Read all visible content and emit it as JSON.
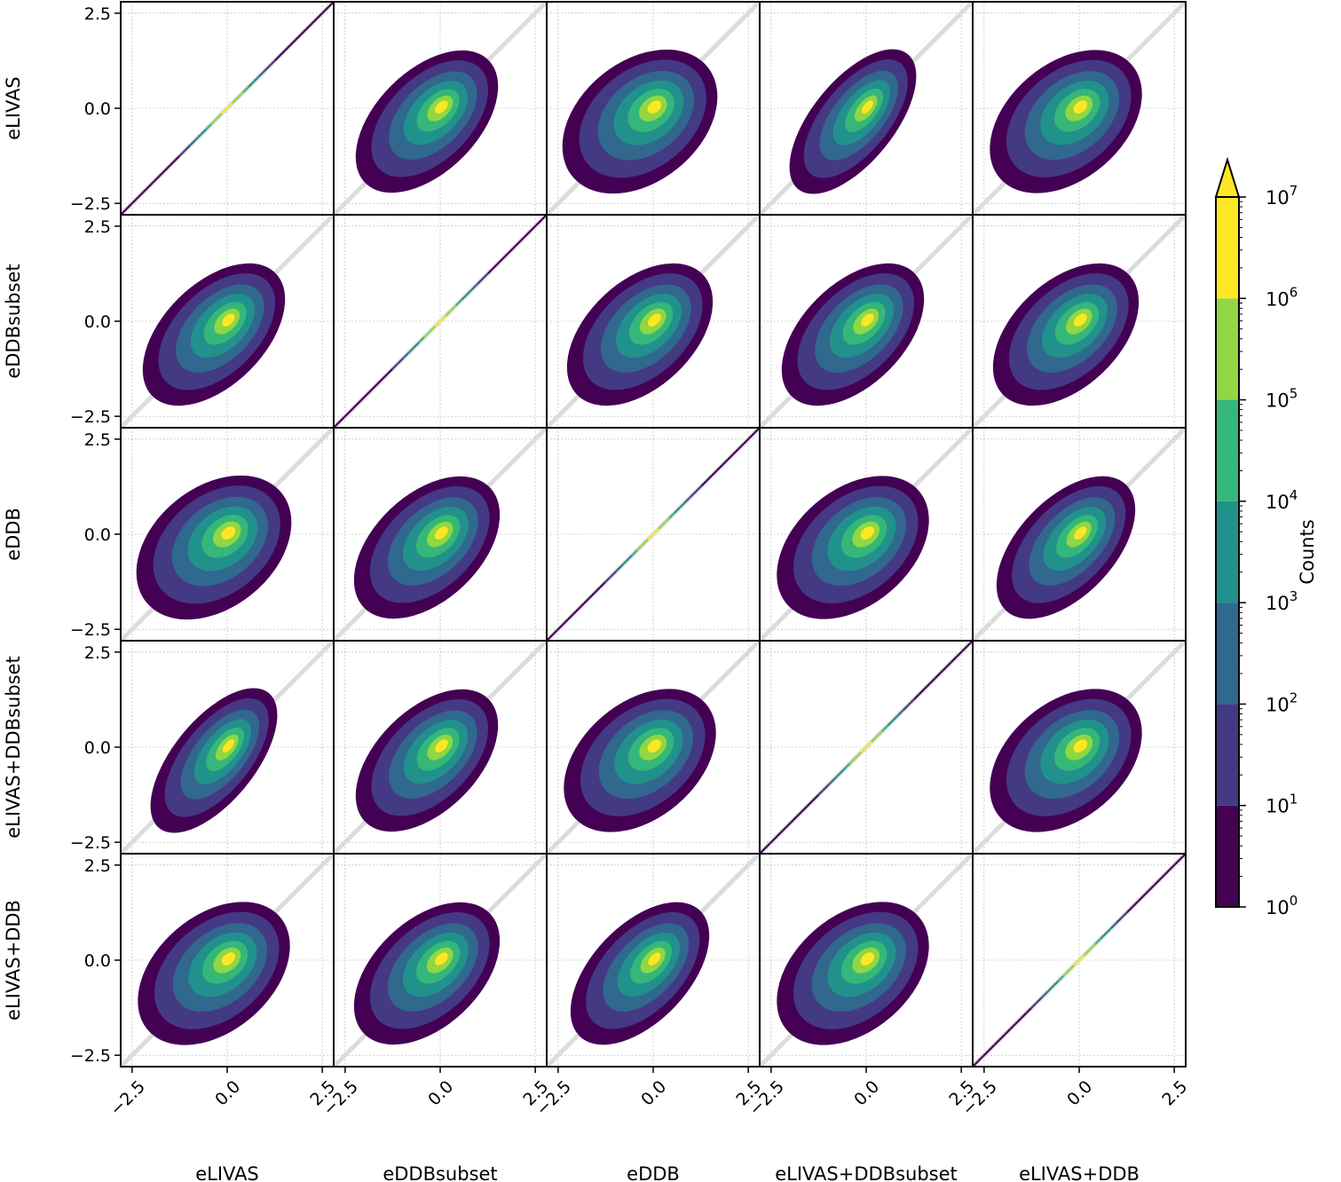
{
  "chart_data": {
    "type": "heatmap",
    "description_kind": "pairplot-2d-histograms",
    "variables": [
      "eLIVAS",
      "eDDBsubset",
      "eDDB",
      "eLIVAS+DDBsubset",
      "eLIVAS+DDB"
    ],
    "axis_range": [
      -2.8,
      2.8
    ],
    "ticks": [
      -2.5,
      0.0,
      2.5
    ],
    "tick_labels": [
      "−2.5",
      "0.0",
      "2.5"
    ],
    "grid": true,
    "diagonal_reference_line": true,
    "colorbar": {
      "label": "Counts",
      "scale": "log",
      "range": [
        1,
        10000000
      ],
      "ticks": [
        1,
        10,
        100,
        1000,
        10000,
        100000,
        1000000,
        10000000
      ],
      "tick_base": "10",
      "tick_exponents": [
        "0",
        "1",
        "2",
        "3",
        "4",
        "5",
        "6",
        "7"
      ],
      "extend": "max",
      "colors": [
        "#440154",
        "#443983",
        "#31688e",
        "#21918c",
        "#35b779",
        "#90d743",
        "#fde725"
      ]
    },
    "panels_spread": [
      [
        0.0,
        0.55,
        0.75,
        0.35,
        0.7
      ],
      [
        0.55,
        0.0,
        0.6,
        0.55,
        0.6
      ],
      [
        0.75,
        0.6,
        0.0,
        0.7,
        0.5
      ],
      [
        0.35,
        0.55,
        0.7,
        0.0,
        0.7
      ],
      [
        0.7,
        0.6,
        0.5,
        0.7,
        0.0
      ]
    ]
  }
}
